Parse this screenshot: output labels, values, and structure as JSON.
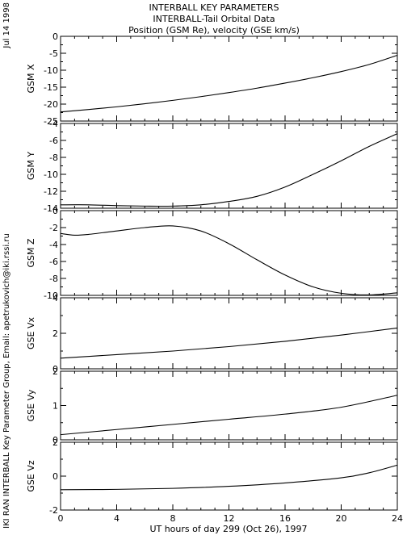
{
  "side_labels": {
    "date": "Jul 14 1998",
    "credit": "IKI RAN INTERBALL Key Parameter Group, Email: apetrukovich@iki.rssi.ru"
  },
  "chart_data": {
    "type": "line",
    "title": "INTERBALL KEY PARAMETERS",
    "subtitle": "INTERBALL-Tail Orbital Data",
    "subtitle2": "Position (GSM Re), velocity (GSE km/s)",
    "xlabel": "UT hours of day 299 (Oct 26), 1997",
    "xlim": [
      0,
      24
    ],
    "xticks": [
      0,
      4,
      8,
      12,
      16,
      20,
      24
    ],
    "grid": false,
    "panels": [
      {
        "ylabel": "GSM X",
        "ylim": [
          -25,
          0
        ],
        "yticks": [
          0,
          -5,
          -10,
          -15,
          -20,
          -25
        ],
        "series": [
          {
            "x": [
              0,
              2,
              4,
              6,
              8,
              10,
              12,
              14,
              16,
              18,
              20,
              22,
              24
            ],
            "y": [
              -22.3,
              -21.6,
              -20.8,
              -19.9,
              -18.9,
              -17.8,
              -16.6,
              -15.3,
              -13.8,
              -12.2,
              -10.4,
              -8.3,
              -5.6
            ]
          }
        ]
      },
      {
        "ylabel": "GSM Y",
        "ylim": [
          -14,
          -4
        ],
        "yticks": [
          -4,
          -6,
          -8,
          -10,
          -12,
          -14
        ],
        "series": [
          {
            "x": [
              0,
              2,
              4,
              6,
              8,
              10,
              12,
              14,
              16,
              18,
              20,
              22,
              24
            ],
            "y": [
              -13.6,
              -13.6,
              -13.7,
              -13.75,
              -13.75,
              -13.6,
              -13.2,
              -12.6,
              -11.5,
              -10.0,
              -8.4,
              -6.7,
              -5.2
            ]
          }
        ]
      },
      {
        "ylabel": "GSM Z",
        "ylim": [
          -10,
          0
        ],
        "yticks": [
          0,
          -2,
          -4,
          -6,
          -8,
          -10
        ],
        "series": [
          {
            "x": [
              0,
              1,
              2,
              4,
              6,
              8,
              10,
              12,
              14,
              16,
              18,
              20,
              22,
              24
            ],
            "y": [
              -2.7,
              -2.9,
              -2.8,
              -2.4,
              -2.0,
              -1.8,
              -2.4,
              -3.9,
              -5.8,
              -7.6,
              -9.0,
              -9.75,
              -9.95,
              -9.7
            ]
          }
        ]
      },
      {
        "ylabel": "GSE Vx",
        "ylim": [
          0,
          4
        ],
        "yticks": [
          0,
          2,
          4
        ],
        "series": [
          {
            "x": [
              0,
              4,
              8,
              12,
              16,
              20,
              24
            ],
            "y": [
              0.6,
              0.8,
              1.0,
              1.25,
              1.55,
              1.9,
              2.3
            ]
          }
        ]
      },
      {
        "ylabel": "GSE Vy",
        "ylim": [
          0,
          2
        ],
        "yticks": [
          0,
          1,
          2
        ],
        "series": [
          {
            "x": [
              0,
              4,
              8,
              12,
              16,
              20,
              24
            ],
            "y": [
              0.15,
              0.3,
              0.45,
              0.6,
              0.75,
              0.95,
              1.3
            ]
          }
        ]
      },
      {
        "ylabel": "GSE Vz",
        "ylim": [
          -2,
          2
        ],
        "yticks": [
          -2,
          0,
          2
        ],
        "series": [
          {
            "x": [
              0,
              4,
              8,
              12,
              16,
              20,
              22,
              24
            ],
            "y": [
              -0.8,
              -0.78,
              -0.72,
              -0.6,
              -0.4,
              -0.1,
              0.2,
              0.65
            ]
          }
        ]
      }
    ]
  }
}
